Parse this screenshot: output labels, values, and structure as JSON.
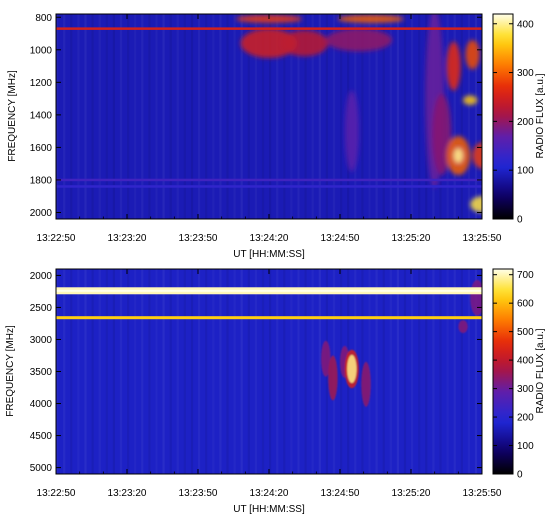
{
  "chart_data": [
    {
      "type": "heatmap",
      "xlabel": "UT [HH:MM:SS]",
      "ylabel": "FREQUENCY [MHz]",
      "x_ticks": [
        "13:22:50",
        "13:23:20",
        "13:23:50",
        "13:24:20",
        "13:24:50",
        "13:25:20",
        "13:25:50"
      ],
      "xlim": [
        "13:22:50",
        "13:25:50"
      ],
      "y_ticks": [
        800,
        1000,
        1200,
        1400,
        1600,
        1800,
        2000
      ],
      "ylim": [
        780,
        2040
      ],
      "y_inverted": true,
      "colorbar": {
        "label": "RADIO FLUX [a.u.]",
        "ticks": [
          0,
          100,
          200,
          300,
          400
        ],
        "range": [
          0,
          420
        ]
      },
      "background_level": 90,
      "lines": [
        {
          "freq": 870,
          "level": 250
        },
        {
          "freq": 1800,
          "level": 140
        },
        {
          "freq": 1840,
          "level": 125
        }
      ],
      "blobs": [
        {
          "t": 90,
          "f": 960,
          "dt": 12,
          "df": 90,
          "v": 250
        },
        {
          "t": 105,
          "f": 960,
          "dt": 10,
          "df": 80,
          "v": 230
        },
        {
          "t": 90,
          "f": 810,
          "dt": 14,
          "df": 25,
          "v": 280
        },
        {
          "t": 133,
          "f": 810,
          "dt": 14,
          "df": 25,
          "v": 300
        },
        {
          "t": 128,
          "f": 940,
          "dt": 14,
          "df": 70,
          "v": 200
        },
        {
          "t": 125,
          "f": 1500,
          "dt": 3,
          "df": 250,
          "v": 165
        },
        {
          "t": 160,
          "f": 1300,
          "dt": 4,
          "df": 550,
          "v": 175
        },
        {
          "t": 163,
          "f": 1520,
          "dt": 4,
          "df": 250,
          "v": 195
        },
        {
          "t": 168,
          "f": 1100,
          "dt": 3,
          "df": 150,
          "v": 270
        },
        {
          "t": 170,
          "f": 1650,
          "dt": 5,
          "df": 120,
          "v": 300
        },
        {
          "t": 170,
          "f": 1650,
          "dt": 2,
          "df": 45,
          "v": 400
        },
        {
          "t": 176,
          "f": 1030,
          "dt": 3,
          "df": 90,
          "v": 290
        },
        {
          "t": 175,
          "f": 1310,
          "dt": 3,
          "df": 30,
          "v": 360
        },
        {
          "t": 180,
          "f": 1650,
          "dt": 4,
          "df": 80,
          "v": 280
        },
        {
          "t": 180,
          "f": 1950,
          "dt": 5,
          "df": 50,
          "v": 380
        }
      ]
    },
    {
      "type": "heatmap",
      "xlabel": "UT [HH:MM:SS]",
      "ylabel": "FREQUENCY [MHz]",
      "x_ticks": [
        "13:22:50",
        "13:23:20",
        "13:23:50",
        "13:24:20",
        "13:24:50",
        "13:25:20",
        "13:25:50"
      ],
      "xlim": [
        "13:22:50",
        "13:25:50"
      ],
      "y_ticks": [
        2000,
        2500,
        3000,
        3500,
        4000,
        4500,
        5000
      ],
      "ylim": [
        1900,
        5100
      ],
      "y_inverted": true,
      "colorbar": {
        "label": "RADIO FLUX [a.u.]",
        "ticks": [
          0,
          100,
          200,
          300,
          400,
          500,
          600,
          700
        ],
        "range": [
          0,
          720
        ]
      },
      "background_level": 170,
      "lines": [
        {
          "freq": 2240,
          "level": 700
        },
        {
          "freq": 2660,
          "level": 620
        }
      ],
      "blobs": [
        {
          "t": 114,
          "f": 3300,
          "dt": 2,
          "df": 280,
          "v": 330
        },
        {
          "t": 117,
          "f": 3600,
          "dt": 2,
          "df": 350,
          "v": 360
        },
        {
          "t": 122,
          "f": 3350,
          "dt": 2,
          "df": 250,
          "v": 330
        },
        {
          "t": 131,
          "f": 3700,
          "dt": 2,
          "df": 350,
          "v": 340
        },
        {
          "t": 125,
          "f": 3460,
          "dt": 3,
          "df": 300,
          "v": 430
        },
        {
          "t": 125,
          "f": 3460,
          "dt": 2,
          "df": 220,
          "v": 680
        },
        {
          "t": 172,
          "f": 2800,
          "dt": 2,
          "df": 100,
          "v": 330
        },
        {
          "t": 178,
          "f": 2350,
          "dt": 3,
          "df": 280,
          "v": 320
        }
      ]
    }
  ]
}
